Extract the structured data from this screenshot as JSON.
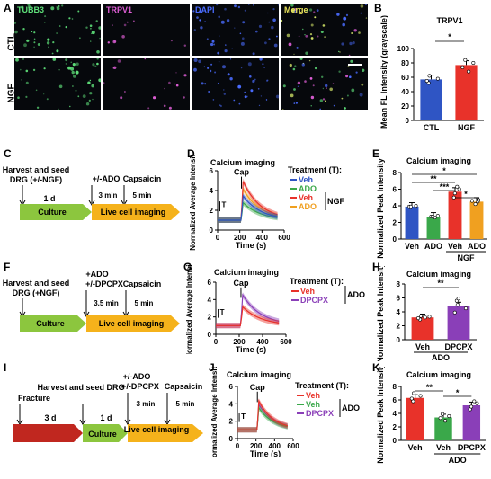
{
  "panels": {
    "A": {
      "label": "A",
      "columns": [
        "TUBB3",
        "TRPV1",
        "DAPI",
        "Merge"
      ],
      "rows": [
        "CTL",
        "NGF"
      ],
      "col_colors": [
        "#5fe07a",
        "#e05fd8",
        "#4a6cff",
        "#e8e25a"
      ]
    },
    "B": {
      "label": "B",
      "title": "TRPV1",
      "ylabel": "Mean FL Intensity (grayscale)",
      "sig": "*"
    },
    "C": {
      "label": "C",
      "harvest": "Harvest and seed",
      "dgr": "DRG (+/-NGF)",
      "d1": "1 d",
      "treat": "+/-ADO",
      "t1": "3 min",
      "cap": "Capsaicin",
      "t2": "5 min",
      "culture": "Culture",
      "live": "Live cell imaging"
    },
    "D": {
      "label": "D",
      "title": "Calcium imaging",
      "cap": "Cap",
      "t": "T",
      "ylabel": "Normalized Average Intensity",
      "xlabel": "Time (s)",
      "legend_title": "Treatment (T):",
      "legend": [
        "Veh",
        "ADO",
        "Veh",
        "ADO"
      ],
      "group": "NGF"
    },
    "E": {
      "label": "E",
      "title": "Calcium imaging",
      "ylabel": "Normalized Peak Intensity",
      "group": "NGF",
      "sigs": [
        "*",
        "**",
        "***",
        "*"
      ]
    },
    "F": {
      "label": "F",
      "harvest": "Harvest and seed",
      "dgr": "DRG (+NGF)",
      "treat1": "+ADO",
      "treat2": "+/-DPCPX",
      "t1": "3.5 min",
      "cap": "Capsaicin",
      "t2": "5 min",
      "culture": "Culture",
      "live": "Live cell imaging"
    },
    "G": {
      "label": "G",
      "title": "Calcium imaging",
      "cap": "Cap",
      "t": "T",
      "ylabel": "Normalized Average Intensity",
      "xlabel": "Time (s)",
      "legend_title": "Treatment (T):",
      "legend": [
        "Veh",
        "DPCPX"
      ],
      "group": "ADO"
    },
    "H": {
      "label": "H",
      "title": "Calcium imaging",
      "ylabel": "Normalized Peak Intensity",
      "group": "ADO",
      "sig": "**"
    },
    "I": {
      "label": "I",
      "fracture": "Fracture",
      "d3": "3 d",
      "harvest": "Harvest and seed DRG",
      "d1": "1 d",
      "treat1": "+/-ADO",
      "treat2": "+/-DPCPX",
      "t1": "3 min",
      "cap": "Capsaicin",
      "t2": "5 min",
      "culture": "Culture",
      "live": "Live cell imaging"
    },
    "J": {
      "label": "J",
      "title": "Calcium imaging",
      "cap": "Cap",
      "t": "T",
      "ylabel": "Normalized Average Intensity",
      "xlabel": "Time (s)",
      "legend_title": "Treatment (T):",
      "legend": [
        "Veh",
        "Veh",
        "DPCPX"
      ],
      "group": "ADO"
    },
    "K": {
      "label": "K",
      "title": "Calcium imaging",
      "ylabel": "Normalized Peak Intensity",
      "group": "ADO",
      "sigs": [
        "**",
        "*"
      ]
    }
  },
  "chart_data": [
    {
      "id": "B",
      "type": "bar",
      "categories": [
        "CTL",
        "NGF"
      ],
      "values": [
        57,
        77
      ],
      "title": "TRPV1",
      "ylabel": "Mean FL Intensity (grayscale)",
      "ylim": [
        0,
        100
      ],
      "yticks": [
        0,
        20,
        40,
        60,
        80,
        100
      ],
      "colors": [
        "#2f55c4",
        "#e8322a"
      ],
      "points": [
        [
          52,
          55,
          58,
          62
        ],
        [
          68,
          74,
          80,
          84
        ]
      ]
    },
    {
      "id": "D",
      "type": "line",
      "title": "Calcium imaging",
      "xlabel": "Time (s)",
      "ylabel": "Normalized Average Intensity",
      "xlim": [
        0,
        600
      ],
      "ylim": [
        0,
        6
      ],
      "xticks": [
        0,
        200,
        400,
        600
      ],
      "yticks": [
        0,
        2,
        4,
        6
      ],
      "series": [
        {
          "name": "Veh",
          "color": "#2f55c4",
          "peak": 3.5
        },
        {
          "name": "ADO",
          "color": "#3aa84a",
          "peak": 2.8
        },
        {
          "name": "Veh",
          "color": "#e8322a",
          "peak": 5.0
        },
        {
          "name": "ADO",
          "color": "#f0a020",
          "peak": 4.2
        }
      ]
    },
    {
      "id": "E",
      "type": "bar",
      "title": "Calcium imaging",
      "ylabel": "Normalized Peak Intensity",
      "categories": [
        "Veh",
        "ADO",
        "Veh",
        "ADO"
      ],
      "values": [
        3.9,
        2.7,
        5.7,
        4.5
      ],
      "ylim": [
        0,
        8
      ],
      "yticks": [
        0,
        2,
        4,
        6,
        8
      ],
      "colors": [
        "#2f55c4",
        "#3aa84a",
        "#e8322a",
        "#f0a020"
      ],
      "points": [
        [
          3.8,
          3.9,
          4.0,
          3.9
        ],
        [
          2.6,
          2.7,
          2.8,
          2.7
        ],
        [
          5.0,
          5.5,
          6.0,
          6.3
        ],
        [
          4.2,
          4.5,
          4.7,
          4.6
        ]
      ]
    },
    {
      "id": "G",
      "type": "line",
      "title": "Calcium imaging",
      "xlabel": "Time (s)",
      "ylabel": "Normalized Average Intensity",
      "xlim": [
        0,
        600
      ],
      "ylim": [
        0,
        6
      ],
      "xticks": [
        0,
        200,
        400,
        600
      ],
      "yticks": [
        0,
        2,
        4,
        6
      ],
      "series": [
        {
          "name": "Veh",
          "color": "#e8322a",
          "peak": 3.2
        },
        {
          "name": "DPCPX",
          "color": "#8a3fb8",
          "peak": 4.6
        }
      ]
    },
    {
      "id": "H",
      "type": "bar",
      "title": "Calcium imaging",
      "ylabel": "Normalized Peak Intensity",
      "categories": [
        "Veh",
        "DPCPX"
      ],
      "values": [
        3.2,
        4.9
      ],
      "ylim": [
        0,
        8
      ],
      "yticks": [
        0,
        2,
        4,
        6,
        8
      ],
      "colors": [
        "#e8322a",
        "#8a3fb8"
      ],
      "points": [
        [
          2.9,
          3.1,
          3.3,
          3.4,
          3.2
        ],
        [
          3.9,
          4.5,
          5.0,
          5.6,
          5.9
        ]
      ]
    },
    {
      "id": "J",
      "type": "line",
      "title": "Calcium imaging",
      "xlabel": "Time (s)",
      "ylabel": "Normalized Average Intensity",
      "xlim": [
        0,
        600
      ],
      "ylim": [
        0,
        6
      ],
      "xticks": [
        0,
        200,
        400,
        600
      ],
      "yticks": [
        0,
        2,
        4,
        6
      ],
      "series": [
        {
          "name": "Veh",
          "color": "#e8322a",
          "peak": 4.4
        },
        {
          "name": "Veh",
          "color": "#3aa84a",
          "peak": 3.6
        },
        {
          "name": "DPCPX",
          "color": "#8a3fb8",
          "peak": 4.0
        }
      ]
    },
    {
      "id": "K",
      "type": "bar",
      "title": "Calcium imaging",
      "ylabel": "Normalized Peak Intensity",
      "categories": [
        "Veh",
        "Veh",
        "DPCPX"
      ],
      "values": [
        6.3,
        3.4,
        5.2
      ],
      "ylim": [
        0,
        8
      ],
      "yticks": [
        0,
        2,
        4,
        6,
        8
      ],
      "colors": [
        "#e8322a",
        "#3aa84a",
        "#8a3fb8"
      ],
      "points": [
        [
          5.8,
          6.2,
          6.6,
          7.0
        ],
        [
          2.9,
          3.3,
          3.6,
          3.9
        ],
        [
          4.6,
          5.0,
          5.5,
          5.8
        ]
      ]
    }
  ]
}
